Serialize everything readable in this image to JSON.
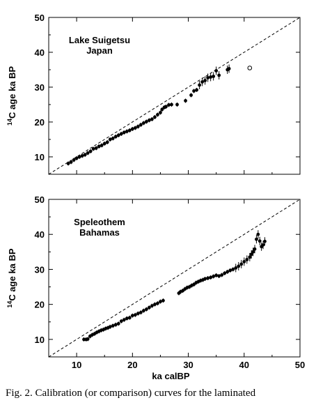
{
  "caption": "Fig. 2. Calibration (or comparison) curves for the laminated",
  "chart_data": [
    {
      "type": "scatter",
      "panel_label_lines": [
        "Lake Suigetsu",
        "Japan"
      ],
      "ylabel_sup": "14",
      "ylabel_rest": "C age ka BP",
      "xlabel": "",
      "xlim": [
        5,
        50
      ],
      "ylim": [
        5,
        50
      ],
      "xticks": [
        10,
        20,
        30,
        40,
        50
      ],
      "yticks": [
        10,
        20,
        30,
        40,
        50
      ],
      "x_tick_labels_shown": false,
      "reference_line": "1:1 dashed",
      "series": [
        {
          "x": [
            8.5,
            9.0,
            9.5,
            10.0,
            10.5,
            11.0,
            11.5,
            12.0,
            12.5,
            13.0,
            13.5,
            14.0,
            14.5,
            15.0,
            15.5,
            16.0,
            16.5,
            17.0,
            17.5,
            18.0,
            18.5,
            19.0,
            19.5,
            20.0,
            20.5,
            21.0,
            21.5,
            22.0,
            22.5,
            23.0,
            23.5,
            24.0,
            24.5,
            25.0,
            25.3,
            25.7,
            26.0,
            26.5,
            27.0,
            28.0,
            29.5,
            30.5,
            31.0,
            31.5,
            32.0,
            32.5,
            33.0,
            33.5,
            34.0,
            34.5,
            35.0,
            35.5,
            37.0,
            37.3
          ],
          "y": [
            8.1,
            8.5,
            9.1,
            9.6,
            10.0,
            10.3,
            10.6,
            11.1,
            11.6,
            12.3,
            12.5,
            13.0,
            13.3,
            13.8,
            14.2,
            15.0,
            15.3,
            15.8,
            16.2,
            16.6,
            17.0,
            17.3,
            17.6,
            18.0,
            18.3,
            18.7,
            19.2,
            19.7,
            20.1,
            20.5,
            20.8,
            21.4,
            22.1,
            22.7,
            23.6,
            24.2,
            24.4,
            24.9,
            25.0,
            25.0,
            26.1,
            27.7,
            28.9,
            29.2,
            30.6,
            31.5,
            31.9,
            32.7,
            32.9,
            33.1,
            34.7,
            33.4,
            35.0,
            35.3
          ]
        }
      ],
      "open_points": {
        "x": [
          41.0
        ],
        "y": [
          35.5
        ]
      }
    },
    {
      "type": "scatter",
      "panel_label_lines": [
        "Speleothem",
        "Bahamas"
      ],
      "ylabel_sup": "14",
      "ylabel_rest": "C age ka BP",
      "xlabel": "ka calBP",
      "xlim": [
        5,
        50
      ],
      "ylim": [
        5,
        50
      ],
      "xticks": [
        10,
        20,
        30,
        40,
        50
      ],
      "yticks": [
        10,
        20,
        30,
        40,
        50
      ],
      "x_tick_labels_shown": true,
      "reference_line": "1:1 dashed",
      "series": [
        {
          "x": [
            11.3,
            11.7,
            12.0,
            12.4,
            12.8,
            13.2,
            13.6,
            14.0,
            14.4,
            14.8,
            15.2,
            15.6,
            16.0,
            16.5,
            17.0,
            17.5,
            18.0,
            18.5,
            19.0,
            19.5,
            20.0,
            20.5,
            21.0,
            21.5,
            22.0,
            22.5,
            23.0,
            23.5,
            24.0,
            24.5,
            25.0,
            25.5,
            28.3,
            28.6,
            29.0,
            29.4,
            29.8,
            30.2,
            30.6,
            31.0,
            31.4,
            31.8,
            32.2,
            32.6,
            33.0,
            33.5,
            34.0,
            34.5,
            35.0,
            35.5,
            36.0,
            36.5,
            37.0,
            37.5,
            38.0,
            38.5,
            39.0,
            39.5,
            40.0,
            40.5,
            41.0,
            41.3,
            41.6,
            41.9,
            42.2,
            42.5,
            42.8,
            43.1,
            43.4,
            43.7
          ],
          "y": [
            10.0,
            10.0,
            10.1,
            10.9,
            11.3,
            11.6,
            12.0,
            12.3,
            12.6,
            12.8,
            13.1,
            13.3,
            13.6,
            13.9,
            14.2,
            14.5,
            15.2,
            15.6,
            16.0,
            16.2,
            16.8,
            17.0,
            17.4,
            17.7,
            18.2,
            18.6,
            19.1,
            19.6,
            20.0,
            20.3,
            20.8,
            21.1,
            23.2,
            23.6,
            23.9,
            24.4,
            24.8,
            25.0,
            25.4,
            25.7,
            26.2,
            26.5,
            26.8,
            27.0,
            27.3,
            27.5,
            27.7,
            28.0,
            28.3,
            28.1,
            28.4,
            28.9,
            29.3,
            29.7,
            30.0,
            30.4,
            30.9,
            31.5,
            32.2,
            32.8,
            33.5,
            34.3,
            35.0,
            35.8,
            38.6,
            40.0,
            38.1,
            36.5,
            37.0,
            38.0
          ]
        }
      ]
    }
  ]
}
